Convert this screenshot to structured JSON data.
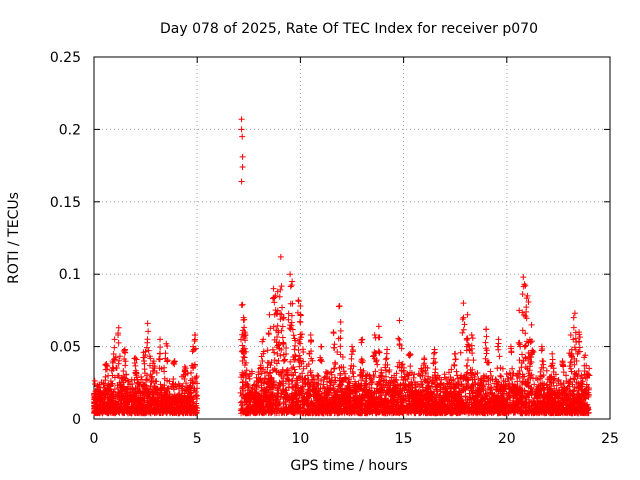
{
  "chart_data": {
    "type": "scatter",
    "title": "Day 078 of 2025, Rate Of TEC Index for receiver p070",
    "xlabel": "GPS time / hours",
    "ylabel": "ROTI / TECUs",
    "xlim": [
      0,
      25
    ],
    "ylim": [
      0,
      0.25
    ],
    "xticks": [
      "0",
      "5",
      "10",
      "15",
      "20",
      "25"
    ],
    "yticks": [
      "0",
      "0.05",
      "0.1",
      "0.15",
      "0.2",
      "0.25"
    ],
    "grid": true,
    "marker": "+",
    "color": "#ff0000",
    "series": [
      {
        "name": "ROTI",
        "baseline_segments": [
          {
            "x_start": 0.0,
            "x_end": 5.0,
            "y_min": 0.004,
            "y_max": 0.032
          },
          {
            "x_start": 7.1,
            "x_end": 24.0,
            "y_min": 0.004,
            "y_max": 0.038
          }
        ],
        "peaks": [
          {
            "x": 0.6,
            "y": 0.038
          },
          {
            "x": 0.9,
            "y": 0.04
          },
          {
            "x": 1.0,
            "y": 0.055
          },
          {
            "x": 1.2,
            "y": 0.063
          },
          {
            "x": 1.5,
            "y": 0.048
          },
          {
            "x": 2.0,
            "y": 0.042
          },
          {
            "x": 2.4,
            "y": 0.046
          },
          {
            "x": 2.6,
            "y": 0.066
          },
          {
            "x": 2.9,
            "y": 0.04
          },
          {
            "x": 3.2,
            "y": 0.055
          },
          {
            "x": 3.5,
            "y": 0.052
          },
          {
            "x": 3.9,
            "y": 0.04
          },
          {
            "x": 4.4,
            "y": 0.036
          },
          {
            "x": 4.8,
            "y": 0.05
          },
          {
            "x": 4.9,
            "y": 0.058
          },
          {
            "x": 7.15,
            "y": 0.207
          },
          {
            "x": 7.15,
            "y": 0.2
          },
          {
            "x": 7.18,
            "y": 0.195
          },
          {
            "x": 7.2,
            "y": 0.181
          },
          {
            "x": 7.2,
            "y": 0.174
          },
          {
            "x": 7.15,
            "y": 0.164
          },
          {
            "x": 7.2,
            "y": 0.079
          },
          {
            "x": 7.25,
            "y": 0.07
          },
          {
            "x": 7.3,
            "y": 0.06
          },
          {
            "x": 8.2,
            "y": 0.055
          },
          {
            "x": 8.5,
            "y": 0.072
          },
          {
            "x": 8.7,
            "y": 0.09
          },
          {
            "x": 8.8,
            "y": 0.085
          },
          {
            "x": 8.9,
            "y": 0.088
          },
          {
            "x": 9.05,
            "y": 0.112
          },
          {
            "x": 9.2,
            "y": 0.07
          },
          {
            "x": 9.5,
            "y": 0.1
          },
          {
            "x": 9.6,
            "y": 0.095
          },
          {
            "x": 9.9,
            "y": 0.082
          },
          {
            "x": 10.0,
            "y": 0.078
          },
          {
            "x": 10.5,
            "y": 0.058
          },
          {
            "x": 11.0,
            "y": 0.05
          },
          {
            "x": 11.6,
            "y": 0.06
          },
          {
            "x": 11.9,
            "y": 0.078
          },
          {
            "x": 12.5,
            "y": 0.05
          },
          {
            "x": 13.0,
            "y": 0.055
          },
          {
            "x": 13.6,
            "y": 0.058
          },
          {
            "x": 13.8,
            "y": 0.064
          },
          {
            "x": 14.2,
            "y": 0.048
          },
          {
            "x": 14.8,
            "y": 0.068
          },
          {
            "x": 15.3,
            "y": 0.045
          },
          {
            "x": 16.0,
            "y": 0.042
          },
          {
            "x": 16.5,
            "y": 0.048
          },
          {
            "x": 17.5,
            "y": 0.045
          },
          {
            "x": 17.9,
            "y": 0.08
          },
          {
            "x": 18.1,
            "y": 0.072
          },
          {
            "x": 18.3,
            "y": 0.058
          },
          {
            "x": 19.0,
            "y": 0.062
          },
          {
            "x": 19.6,
            "y": 0.055
          },
          {
            "x": 20.2,
            "y": 0.05
          },
          {
            "x": 20.6,
            "y": 0.075
          },
          {
            "x": 20.8,
            "y": 0.098
          },
          {
            "x": 20.9,
            "y": 0.092
          },
          {
            "x": 21.0,
            "y": 0.085
          },
          {
            "x": 21.2,
            "y": 0.065
          },
          {
            "x": 21.7,
            "y": 0.05
          },
          {
            "x": 22.2,
            "y": 0.045
          },
          {
            "x": 22.7,
            "y": 0.04
          },
          {
            "x": 23.1,
            "y": 0.058
          },
          {
            "x": 23.3,
            "y": 0.073
          },
          {
            "x": 23.5,
            "y": 0.06
          },
          {
            "x": 23.8,
            "y": 0.044
          },
          {
            "x": 24.0,
            "y": 0.03
          }
        ]
      }
    ]
  }
}
